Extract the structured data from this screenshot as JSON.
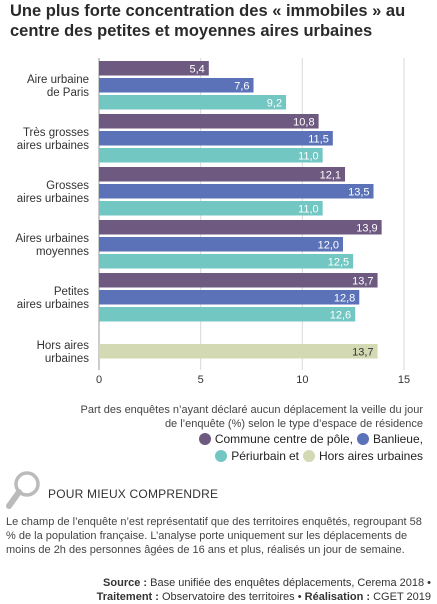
{
  "title": "Une plus forte concentration des « immobiles » au centre des petites et moyennes aires urbaines",
  "chart_data": {
    "type": "bar",
    "orientation": "horizontal",
    "categories": [
      [
        "Aire urbaine",
        "de Paris"
      ],
      [
        "Très grosses",
        "aires urbaines"
      ],
      [
        "Grosses",
        "aires urbaines"
      ],
      [
        "Aires urbaines",
        "moyennes"
      ],
      [
        "Petites",
        "aires urbaines"
      ],
      [
        "Hors aires",
        "urbaines"
      ]
    ],
    "series": [
      {
        "name": "Commune centre de pôle",
        "color": "#6e5a80",
        "values": [
          5.4,
          10.8,
          12.1,
          13.9,
          13.7,
          null
        ]
      },
      {
        "name": "Banlieue",
        "color": "#5b72b8",
        "values": [
          7.6,
          11.5,
          13.5,
          12.0,
          12.8,
          null
        ]
      },
      {
        "name": "Périurbain",
        "color": "#72c7c2",
        "values": [
          9.2,
          11.0,
          11.0,
          12.5,
          12.6,
          null
        ]
      },
      {
        "name": "Hors aires urbaines",
        "color": "#d3d9b3",
        "values": [
          null,
          null,
          null,
          null,
          null,
          13.7
        ]
      }
    ],
    "xlim": [
      0,
      15
    ],
    "xticks": [
      "0",
      "5",
      "10",
      "15"
    ],
    "grid": true,
    "legend": "bottom-right"
  },
  "explanation": "Part des enquêtes n’ayant déclaré aucun déplacement la veille du jour de l’enquête (%) selon le type d’espace de résidence",
  "legend_connector": "et",
  "section_title": "POUR MIEUX COMPRENDRE",
  "note": "Le champ de l’enquête n’est représentatif que des territoires enquêtés, regroupant 58 % de la population française. L’analyse porte uniquement sur les déplacements de moins de 2h des personnes âgées de 16 ans et plus, réalisés un jour de semaine.",
  "source": {
    "source_label": "Source :",
    "source_text": "Base unifiée des enquêtes déplacements, Cerema 2018 •",
    "treatment_label": "Traitement :",
    "treatment_text": "Observatoire des territoires •",
    "realisation_label": "Réalisation :",
    "realisation_text": "CGET 2019"
  }
}
